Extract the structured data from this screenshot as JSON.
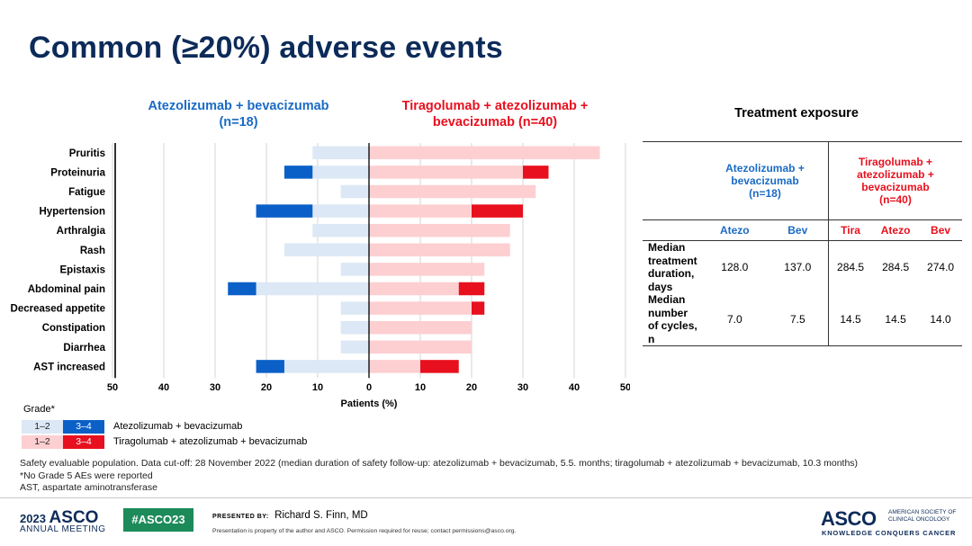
{
  "slide": {
    "title": "Common (≥20%) adverse events"
  },
  "chart_data": {
    "type": "bar",
    "orientation": "horizontal-diverging",
    "categories": [
      "Pruritis",
      "Proteinuria",
      "Fatigue",
      "Hypertension",
      "Arthralgia",
      "Rash",
      "Epistaxis",
      "Abdominal pain",
      "Decreased appetite",
      "Constipation",
      "Diarrhea",
      "AST increased"
    ],
    "left_group": {
      "name": "Atezolizumab + bevacizumab",
      "header_line1": "Atezolizumab + bevacizumab",
      "header_line2": "(n=18)",
      "series": [
        {
          "name": "1–2",
          "color": "#dce8f5",
          "values": [
            11,
            11,
            5.5,
            11,
            11,
            16.5,
            5.5,
            22,
            5.5,
            5.5,
            5.5,
            16.5
          ]
        },
        {
          "name": "3–4",
          "color": "#0a60c7",
          "values": [
            0,
            5.5,
            0,
            11,
            0,
            0,
            0,
            5.5,
            0,
            0,
            0,
            5.5
          ]
        }
      ]
    },
    "right_group": {
      "name": "Tiragolumab + atezolizumab + bevacizumab",
      "header_line1": "Tiragolumab + atezolizumab +",
      "header_line2": "bevacizumab (n=40)",
      "series": [
        {
          "name": "1–2",
          "color": "#fdcfd1",
          "values": [
            45,
            30,
            32.5,
            20,
            27.5,
            27.5,
            22.5,
            17.5,
            20,
            20,
            20,
            10
          ]
        },
        {
          "name": "3–4",
          "color": "#e8101e",
          "values": [
            0,
            5,
            0,
            10,
            0,
            0,
            0,
            5,
            2.5,
            0,
            0,
            7.5
          ]
        }
      ]
    },
    "xlim": [
      -50,
      50
    ],
    "x_ticks": [
      50,
      40,
      30,
      20,
      10,
      0,
      10,
      20,
      30,
      40,
      50
    ],
    "xlabel": "Patients (%)",
    "grid": true
  },
  "legend": {
    "title": "Grade*",
    "low_label": "1–2",
    "high_label": "3–4",
    "row1": "Atezolizumab  + bevacizumab",
    "row2": "Tiragolumab + atezolizumab + bevacizumab"
  },
  "footnotes": {
    "line1": "Safety evaluable population.  Data cut-off: 28 November  2022 (median duration of safety follow-up: atezolizumab  + bevacizumab,  5.5. months; tiragolumab + atezolizumab  + bevacizumab,  10.3 months)",
    "line2": "*No Grade 5 AEs were reported",
    "line3": "AST, aspartate aminotransferase"
  },
  "exposure_table": {
    "title": "Treatment exposure",
    "group1_line1": "Atezolizumab  +",
    "group1_line2": "bevacizumab",
    "group1_line3": "(n=18)",
    "group2_line1": "Tiragolumab  +",
    "group2_line2": "atezolizumab  +",
    "group2_line3": "bevacizumab",
    "group2_line4": "(n=40)",
    "columns": [
      "Atezo",
      "Bev",
      "Tira",
      "Atezo",
      "Bev"
    ],
    "row1_label_line1": "Median",
    "row1_label_line2": "treatment",
    "row1_label_line3": "duration,",
    "row1_label_line4": "days",
    "row1_values": [
      "128.0",
      "137.0",
      "284.5",
      "284.5",
      "274.0"
    ],
    "row2_label_line1": "Median",
    "row2_label_line2": "number",
    "row2_label_line3": "of cycles,  n",
    "row2_values": [
      "7.0",
      "7.5",
      "14.5",
      "14.5",
      "14.0"
    ],
    "line_color": "#333333"
  },
  "footer": {
    "meeting_year": "2023",
    "meeting_asco": "ASCO",
    "meeting_name": "ANNUAL MEETING",
    "hashtag": "#ASCO23",
    "presented_by_label": "PRESENTED  BY:",
    "presenter": "Richard S. Finn, MD",
    "disclaimer": "Presentation is property of the author and ASCO. Permission required for reuse; contact permissions@asco.org.",
    "logo_text": "ASCO",
    "society_line1": "AMERICAN SOCIETY OF",
    "society_line2": "CLINICAL ONCOLOGY",
    "tagline": "KNOWLEDGE CONQUERS CANCER"
  },
  "colors": {
    "title": "#0d2b59",
    "blue_text": "#1a6bc4",
    "red_text": "#e8101e"
  }
}
